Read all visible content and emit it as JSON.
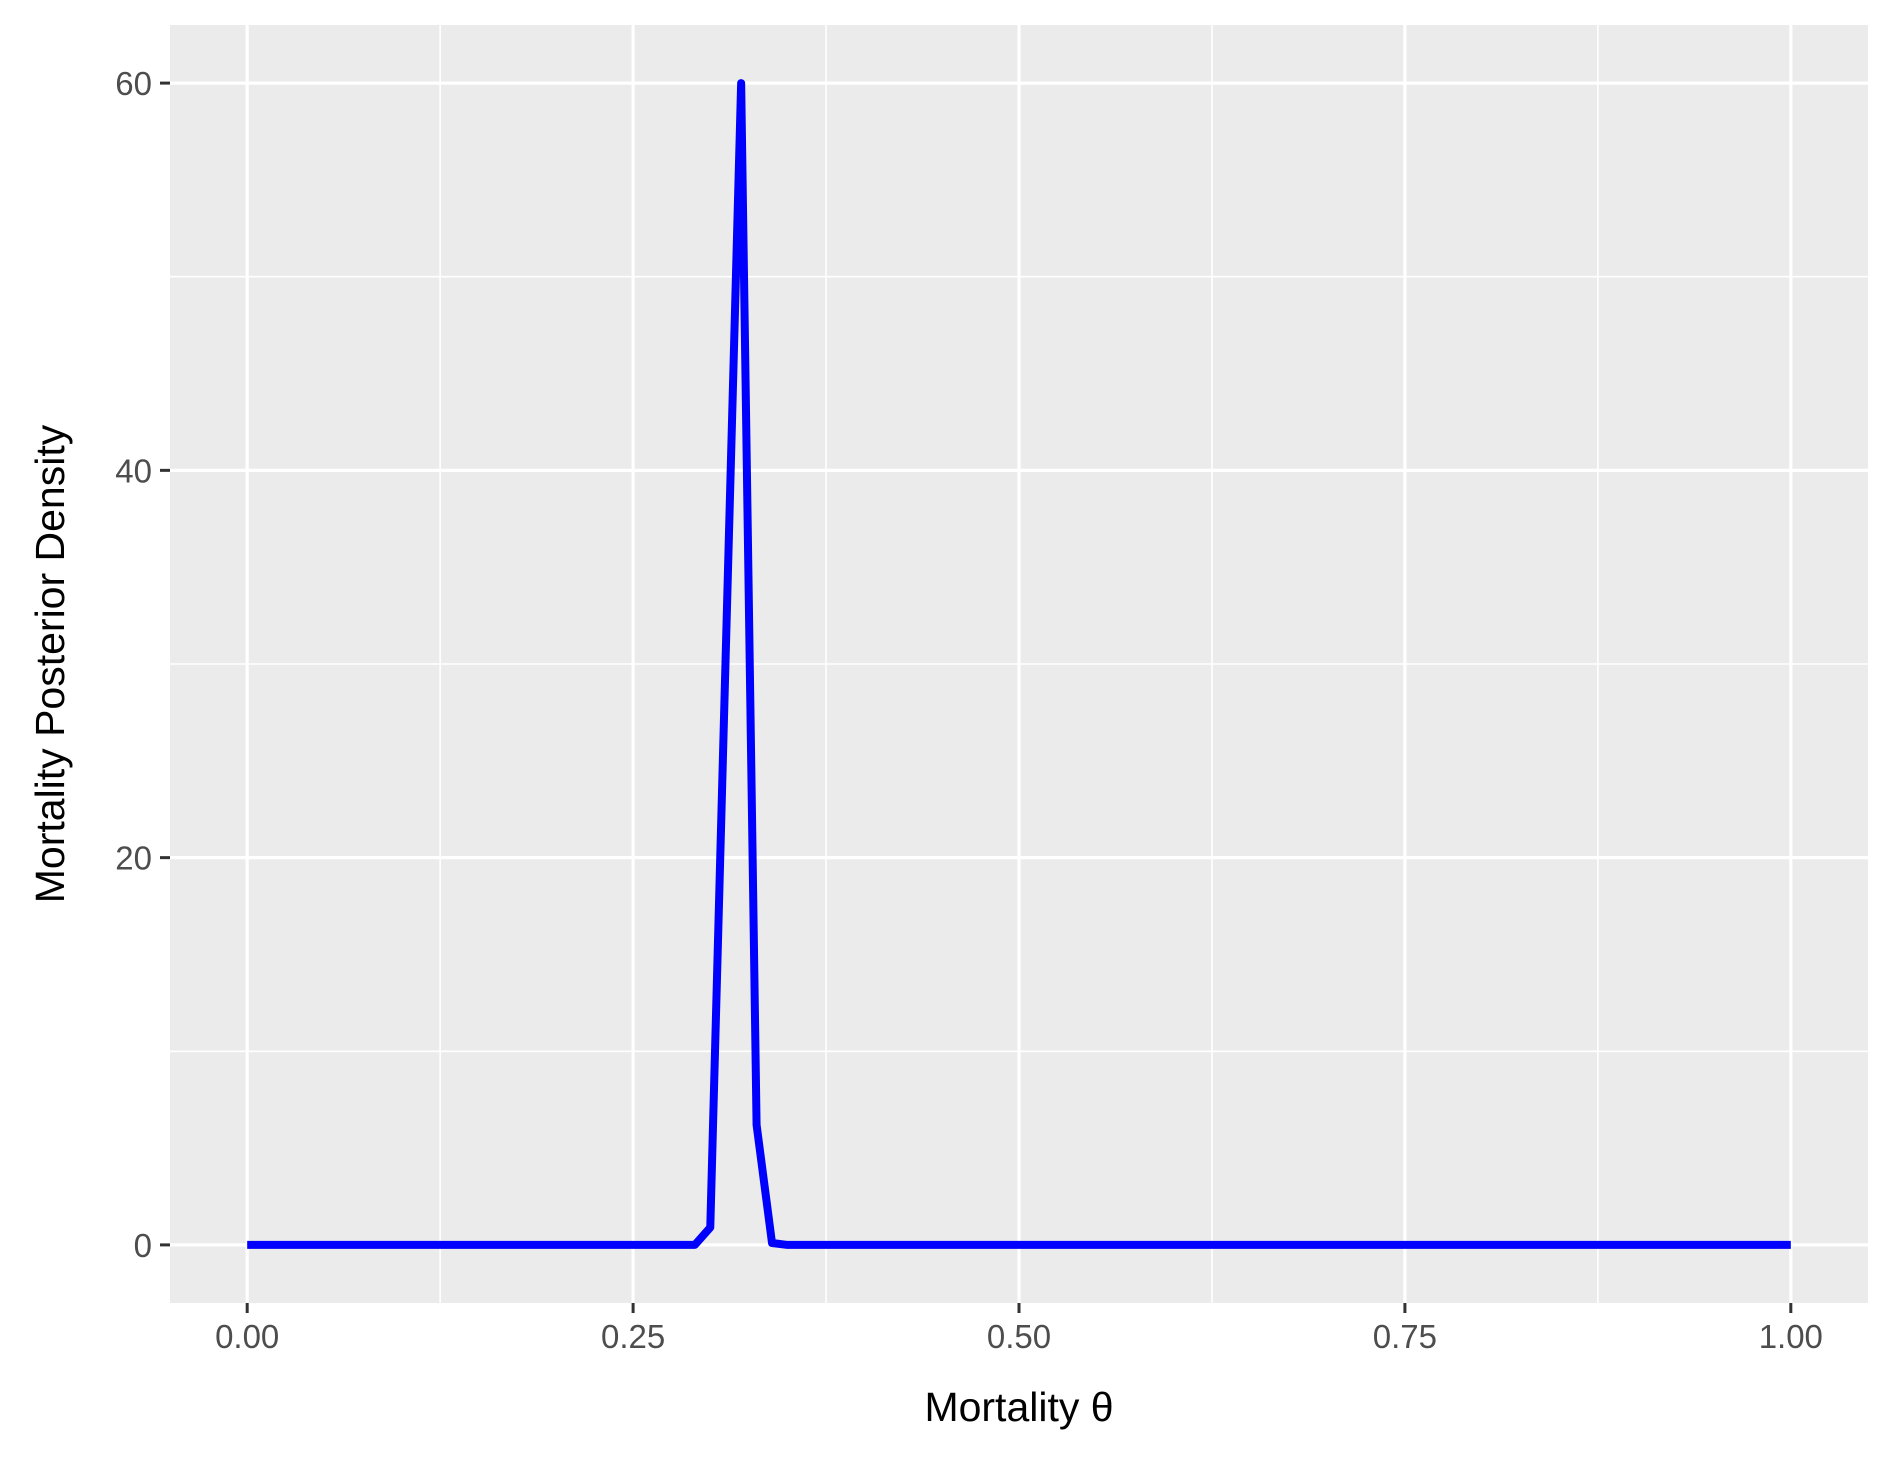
{
  "chart_data": {
    "type": "line",
    "title": "",
    "xlabel": "Mortality θ",
    "ylabel": "Mortality Posterior Density",
    "xlim": [
      -0.05,
      1.05
    ],
    "ylim": [
      -3,
      63
    ],
    "x_ticks": [
      0.0,
      0.25,
      0.5,
      0.75,
      1.0
    ],
    "x_tick_labels": [
      "0.00",
      "0.25",
      "0.50",
      "0.75",
      "1.00"
    ],
    "x_minor_ticks": [
      0.125,
      0.375,
      0.625,
      0.875
    ],
    "y_ticks": [
      0,
      20,
      40,
      60
    ],
    "y_tick_labels": [
      "0",
      "20",
      "40",
      "60"
    ],
    "y_minor_ticks": [
      10,
      30,
      50
    ],
    "grid": true,
    "legend": "none",
    "colors": {
      "panel_background": "#ebebeb",
      "grid": "#ffffff",
      "line": "#0000ff",
      "tick_mark": "#333333"
    },
    "series": [
      {
        "x": [
          0.0,
          0.01,
          0.02,
          0.03,
          0.04,
          0.05,
          0.06,
          0.07,
          0.08,
          0.09,
          0.1,
          0.11,
          0.12,
          0.13,
          0.14,
          0.15,
          0.16,
          0.17,
          0.18,
          0.19,
          0.2,
          0.21,
          0.22,
          0.23,
          0.24,
          0.25,
          0.26,
          0.27,
          0.28,
          0.29,
          0.3,
          0.31,
          0.32,
          0.33,
          0.34,
          0.35,
          0.36,
          0.37,
          0.38,
          0.39,
          0.4,
          0.41,
          0.42,
          0.43,
          0.44,
          0.45,
          0.46,
          0.47,
          0.48,
          0.49,
          0.5,
          0.51,
          0.52,
          0.53,
          0.54,
          0.55,
          0.56,
          0.57,
          0.58,
          0.59,
          0.6,
          0.61,
          0.62,
          0.63,
          0.64,
          0.65,
          0.66,
          0.67,
          0.68,
          0.69,
          0.7,
          0.71,
          0.72,
          0.73,
          0.74,
          0.75,
          0.76,
          0.77,
          0.78,
          0.79,
          0.8,
          0.81,
          0.82,
          0.83,
          0.84,
          0.85,
          0.86,
          0.87,
          0.88,
          0.89,
          0.9,
          0.91,
          0.92,
          0.93,
          0.94,
          0.95,
          0.96,
          0.97,
          0.98,
          0.99,
          1.0
        ],
        "y": [
          0,
          0,
          0,
          0,
          0,
          0,
          0,
          0,
          0,
          0,
          0,
          0,
          0,
          0,
          0,
          0,
          0,
          0,
          0,
          0,
          0,
          0,
          0,
          0,
          0,
          0,
          0,
          0,
          0,
          0,
          0.9,
          30.5,
          60,
          6.2,
          0.1,
          0,
          0,
          0,
          0,
          0,
          0,
          0,
          0,
          0,
          0,
          0,
          0,
          0,
          0,
          0,
          0,
          0,
          0,
          0,
          0,
          0,
          0,
          0,
          0,
          0,
          0,
          0,
          0,
          0,
          0,
          0,
          0,
          0,
          0,
          0,
          0,
          0,
          0,
          0,
          0,
          0,
          0,
          0,
          0,
          0,
          0,
          0,
          0,
          0,
          0,
          0,
          0,
          0,
          0,
          0,
          0,
          0,
          0,
          0,
          0,
          0,
          0,
          0,
          0,
          0,
          0
        ]
      }
    ]
  }
}
